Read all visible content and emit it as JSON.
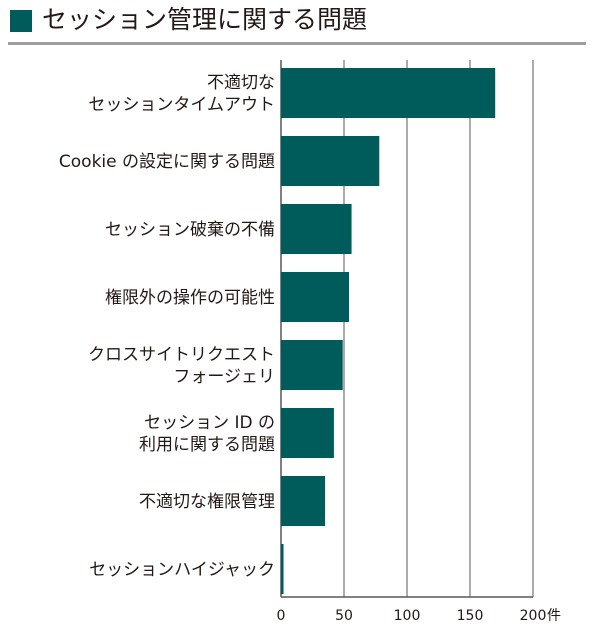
{
  "title": "セッション管理に関する問題",
  "colors": {
    "bar": "#005c5b",
    "title_square": "#005c5b",
    "grid": "#595757",
    "rule": "#9d9d9d",
    "text": "#231815"
  },
  "chart_data": {
    "type": "bar",
    "orientation": "horizontal",
    "categories": [
      [
        "不適切な",
        "セッションタイムアウト"
      ],
      [
        "Cookie の設定に関する問題"
      ],
      [
        "セッション破棄の不備"
      ],
      [
        "権限外の操作の可能性"
      ],
      [
        "クロスサイトリクエスト",
        "フォージェリ"
      ],
      [
        "セッション ID の",
        "利用に関する問題"
      ],
      [
        "不適切な権限管理"
      ],
      [
        "セッションハイジャック"
      ]
    ],
    "values": [
      170,
      78,
      56,
      54,
      49,
      42,
      35,
      2
    ],
    "xlim": [
      0,
      200
    ],
    "xticks": [
      "0",
      "50",
      "100",
      "150",
      "200"
    ],
    "x_unit": "件",
    "grid": true
  }
}
